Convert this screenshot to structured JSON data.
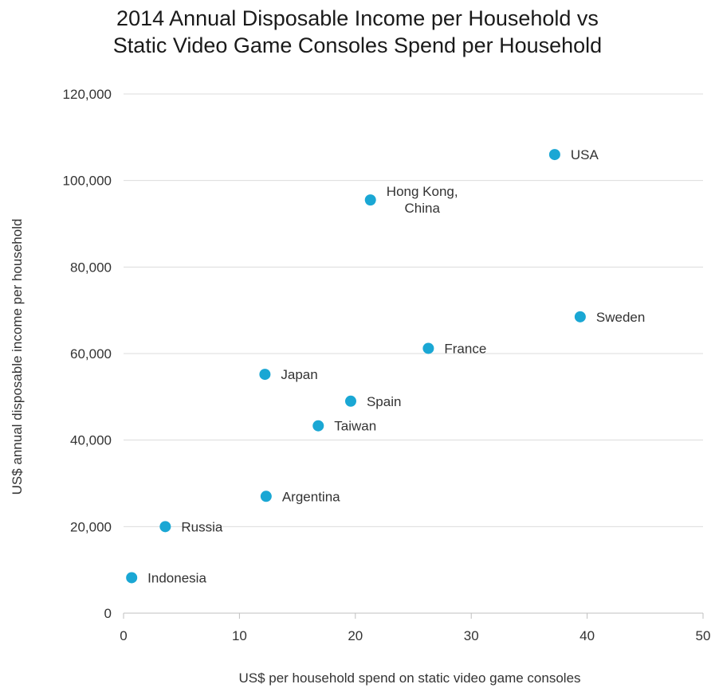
{
  "chart_data": {
    "type": "scatter",
    "title": [
      "2014 Annual Disposable Income per Household vs",
      "Static Video Game Consoles Spend per Household"
    ],
    "xlabel": "US$ per household spend on static video game consoles",
    "ylabel": "US$ annual disposable income per household",
    "xlim": [
      0,
      50
    ],
    "ylim": [
      0,
      120000
    ],
    "x_ticks": [
      0,
      10,
      20,
      30,
      40,
      50
    ],
    "x_tick_labels": [
      "0",
      "10",
      "20",
      "30",
      "40",
      "50"
    ],
    "y_ticks": [
      0,
      20000,
      40000,
      60000,
      80000,
      100000,
      120000
    ],
    "y_tick_labels": [
      "0",
      "20,000",
      "40,000",
      "60,000",
      "80,000",
      "100,000",
      "120,000"
    ],
    "grid": "horizontal",
    "point_color": "#1aa7d4",
    "points": [
      {
        "label": [
          "USA"
        ],
        "x": 37.2,
        "y": 106000
      },
      {
        "label": [
          "Hong Kong,",
          "China"
        ],
        "x": 21.3,
        "y": 95500
      },
      {
        "label": [
          "Sweden"
        ],
        "x": 39.4,
        "y": 68500
      },
      {
        "label": [
          "France"
        ],
        "x": 26.3,
        "y": 61200
      },
      {
        "label": [
          "Japan"
        ],
        "x": 12.2,
        "y": 55200
      },
      {
        "label": [
          "Spain"
        ],
        "x": 19.6,
        "y": 49000
      },
      {
        "label": [
          "Taiwan"
        ],
        "x": 16.8,
        "y": 43300
      },
      {
        "label": [
          "Argentina"
        ],
        "x": 12.3,
        "y": 27000
      },
      {
        "label": [
          "Russia"
        ],
        "x": 3.6,
        "y": 20000
      },
      {
        "label": [
          "Indonesia"
        ],
        "x": 0.7,
        "y": 8200
      }
    ]
  }
}
